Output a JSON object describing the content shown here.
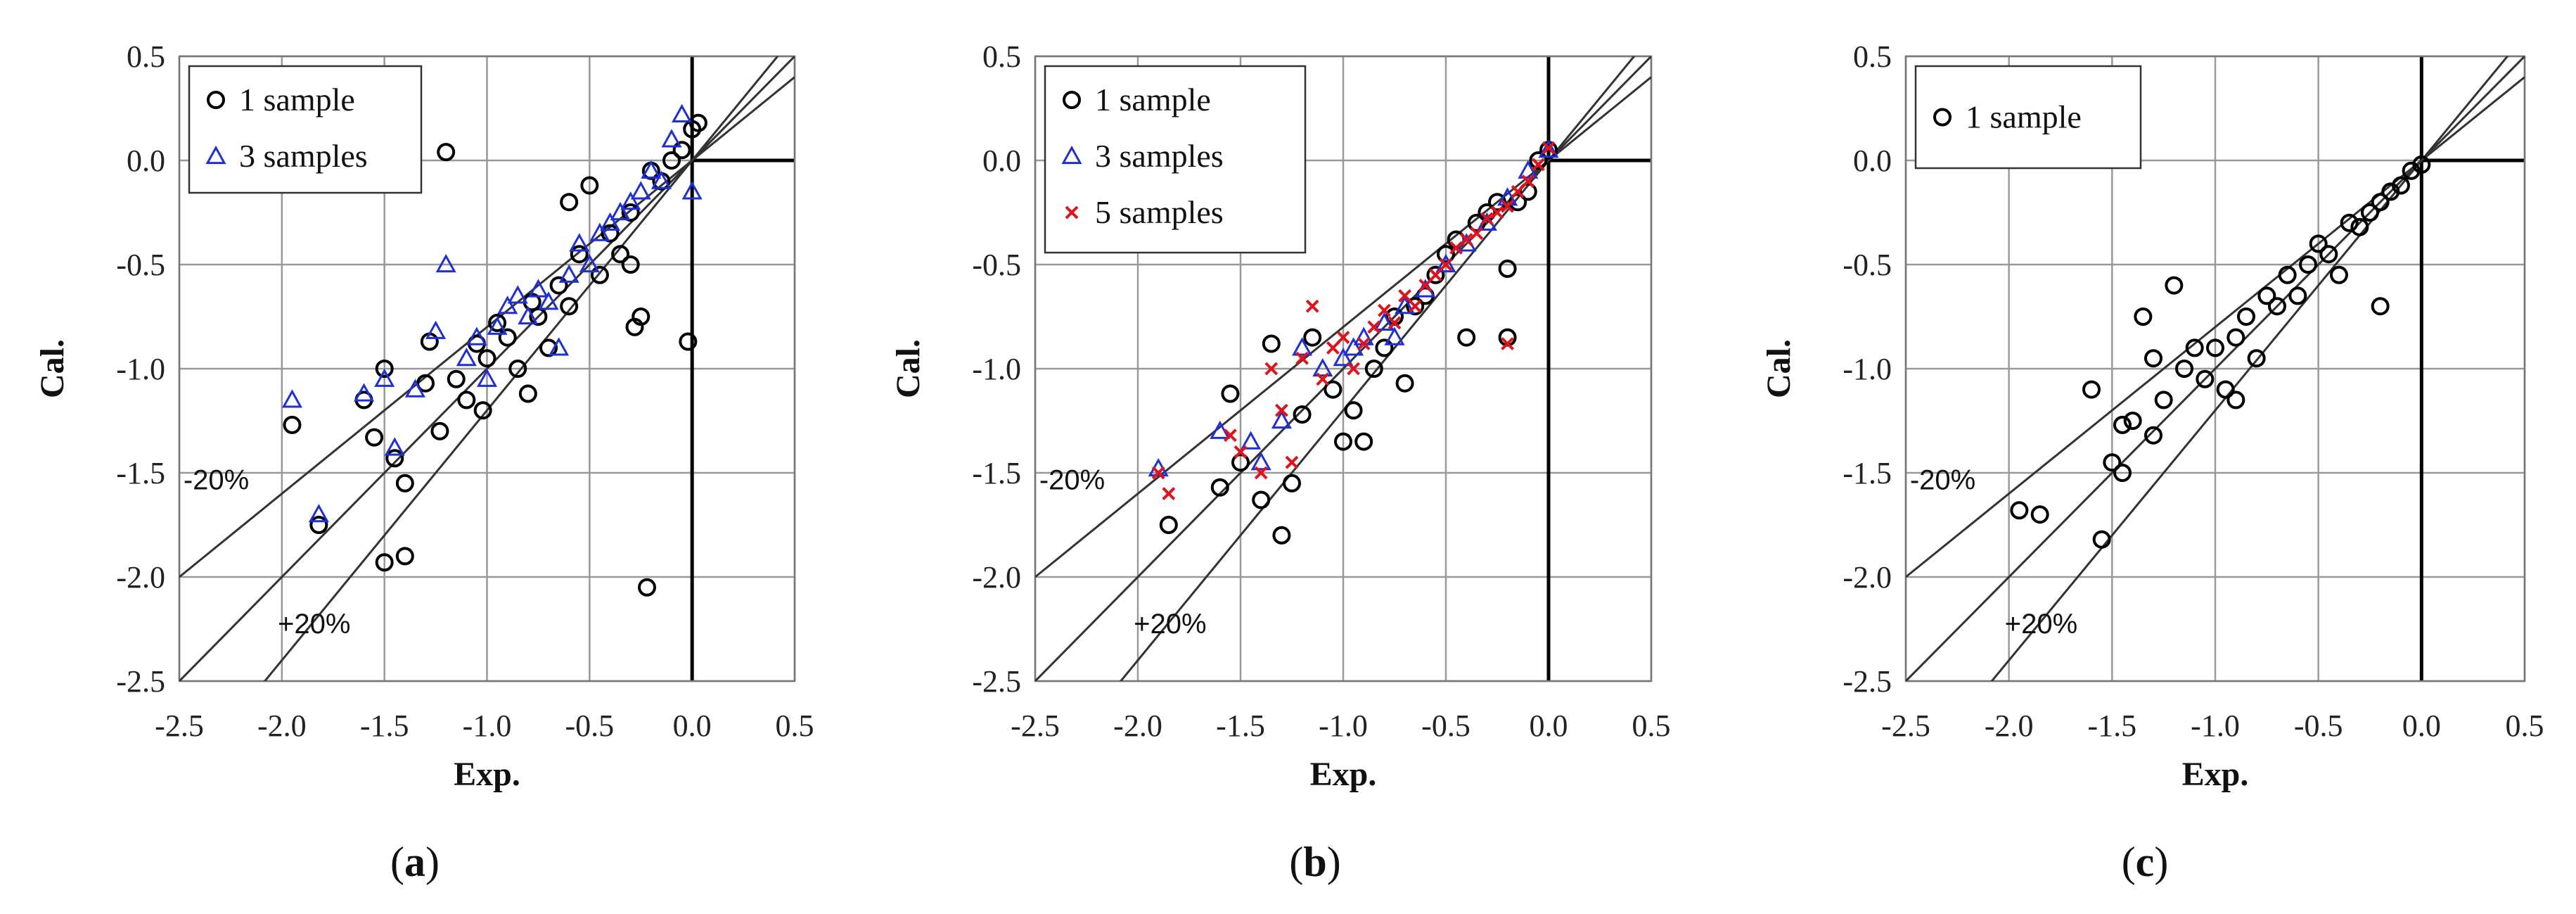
{
  "chart_data": [
    {
      "type": "scatter",
      "panel_label": {
        "open": "(",
        "letter": "a",
        "close": ")"
      },
      "xlabel": "Exp.",
      "ylabel": "Cal.",
      "xlim": [
        -2.5,
        0.5
      ],
      "ylim": [
        -2.5,
        0.5
      ],
      "xticks": [
        "-2.5",
        "-2.0",
        "-1.5",
        "-1.0",
        "-0.5",
        "0.0",
        "0.5"
      ],
      "yticks": [
        "0.5",
        "0.0",
        "-0.5",
        "-1.0",
        "-1.5",
        "-2.0",
        "-2.5"
      ],
      "grid": true,
      "legend_position": "top-left",
      "reference_lines": [
        {
          "slope": 1.0,
          "label": ""
        },
        {
          "slope": 0.8,
          "label": "-20%"
        },
        {
          "slope": 1.2,
          "label": "+20%"
        }
      ],
      "series": [
        {
          "name": "1 sample",
          "marker": "circle",
          "color": "#000000",
          "points": [
            [
              -1.95,
              -1.27
            ],
            [
              -1.82,
              -1.75
            ],
            [
              -1.55,
              -1.33
            ],
            [
              -1.5,
              -1.0
            ],
            [
              -1.5,
              -1.93
            ],
            [
              -1.45,
              -1.43
            ],
            [
              -1.4,
              -1.9
            ],
            [
              -1.3,
              -1.07
            ],
            [
              -1.28,
              -0.87
            ],
            [
              -1.23,
              -1.3
            ],
            [
              -1.2,
              0.04
            ],
            [
              -1.15,
              -1.05
            ],
            [
              -1.1,
              -1.15
            ],
            [
              -1.05,
              -0.88
            ],
            [
              -1.02,
              -1.2
            ],
            [
              -1.0,
              -0.95
            ],
            [
              -0.95,
              -0.78
            ],
            [
              -0.9,
              -0.85
            ],
            [
              -0.85,
              -1.0
            ],
            [
              -0.8,
              -1.12
            ],
            [
              -0.78,
              -0.68
            ],
            [
              -0.75,
              -0.75
            ],
            [
              -0.7,
              -0.9
            ],
            [
              -0.65,
              -0.6
            ],
            [
              -0.6,
              -0.7
            ],
            [
              -0.55,
              -0.45
            ],
            [
              -0.5,
              -0.12
            ],
            [
              -0.45,
              -0.55
            ],
            [
              -0.4,
              -0.35
            ],
            [
              -0.35,
              -0.45
            ],
            [
              -0.3,
              -0.25
            ],
            [
              -0.28,
              -0.8
            ],
            [
              -0.25,
              -0.75
            ],
            [
              -0.22,
              -2.05
            ],
            [
              -0.2,
              -0.05
            ],
            [
              -0.15,
              -0.1
            ],
            [
              -0.1,
              0.0
            ],
            [
              -0.05,
              0.05
            ],
            [
              -0.02,
              -0.87
            ],
            [
              0.0,
              0.15
            ],
            [
              0.03,
              0.18
            ],
            [
              -0.3,
              -0.5
            ],
            [
              -0.6,
              -0.2
            ],
            [
              -1.4,
              -1.55
            ],
            [
              -1.6,
              -1.15
            ]
          ]
        },
        {
          "name": "3 samples",
          "marker": "triangle",
          "color": "#1f2fd6",
          "points": [
            [
              -1.95,
              -1.15
            ],
            [
              -1.82,
              -1.7
            ],
            [
              -1.6,
              -1.12
            ],
            [
              -1.5,
              -1.05
            ],
            [
              -1.45,
              -1.38
            ],
            [
              -1.35,
              -1.1
            ],
            [
              -1.25,
              -0.82
            ],
            [
              -1.2,
              -0.5
            ],
            [
              -1.1,
              -0.95
            ],
            [
              -1.05,
              -0.85
            ],
            [
              -0.95,
              -0.8
            ],
            [
              -0.9,
              -0.7
            ],
            [
              -0.85,
              -0.65
            ],
            [
              -0.8,
              -0.75
            ],
            [
              -0.75,
              -0.62
            ],
            [
              -0.7,
              -0.68
            ],
            [
              -0.6,
              -0.55
            ],
            [
              -0.55,
              -0.4
            ],
            [
              -0.5,
              -0.5
            ],
            [
              -0.45,
              -0.35
            ],
            [
              -0.4,
              -0.3
            ],
            [
              -0.35,
              -0.25
            ],
            [
              -0.3,
              -0.2
            ],
            [
              -0.25,
              -0.15
            ],
            [
              -0.2,
              -0.05
            ],
            [
              -0.15,
              -0.1
            ],
            [
              -0.1,
              0.1
            ],
            [
              -0.05,
              0.22
            ],
            [
              0.0,
              -0.15
            ],
            [
              -1.0,
              -1.05
            ],
            [
              -0.65,
              -0.9
            ]
          ]
        }
      ]
    },
    {
      "type": "scatter",
      "panel_label": {
        "open": "(",
        "letter": "b",
        "close": ")"
      },
      "xlabel": "Exp.",
      "ylabel": "Cal.",
      "xlim": [
        -2.5,
        0.5
      ],
      "ylim": [
        -2.5,
        0.5
      ],
      "xticks": [
        "-2.5",
        "-2.0",
        "-1.5",
        "-1.0",
        "-0.5",
        "0.0",
        "0.5"
      ],
      "yticks": [
        "0.5",
        "0.0",
        "-0.5",
        "-1.0",
        "-1.5",
        "-2.0",
        "-2.5"
      ],
      "grid": true,
      "legend_position": "top-left",
      "reference_lines": [
        {
          "slope": 1.0,
          "label": ""
        },
        {
          "slope": 0.8,
          "label": "-20%"
        },
        {
          "slope": 1.2,
          "label": "+20%"
        }
      ],
      "series": [
        {
          "name": "1 sample",
          "marker": "circle",
          "color": "#000000",
          "points": [
            [
              -1.85,
              -1.75
            ],
            [
              -1.6,
              -1.57
            ],
            [
              -1.55,
              -1.12
            ],
            [
              -1.5,
              -1.45
            ],
            [
              -1.4,
              -1.63
            ],
            [
              -1.35,
              -0.88
            ],
            [
              -1.3,
              -1.8
            ],
            [
              -1.25,
              -1.55
            ],
            [
              -1.2,
              -1.22
            ],
            [
              -1.15,
              -0.85
            ],
            [
              -1.05,
              -1.1
            ],
            [
              -1.0,
              -1.35
            ],
            [
              -0.95,
              -1.2
            ],
            [
              -0.9,
              -1.35
            ],
            [
              -0.85,
              -1.0
            ],
            [
              -0.8,
              -0.9
            ],
            [
              -0.75,
              -0.75
            ],
            [
              -0.7,
              -1.07
            ],
            [
              -0.65,
              -0.7
            ],
            [
              -0.6,
              -0.65
            ],
            [
              -0.55,
              -0.55
            ],
            [
              -0.5,
              -0.45
            ],
            [
              -0.45,
              -0.38
            ],
            [
              -0.4,
              -0.85
            ],
            [
              -0.35,
              -0.3
            ],
            [
              -0.3,
              -0.25
            ],
            [
              -0.25,
              -0.2
            ],
            [
              -0.2,
              -0.85
            ],
            [
              -0.2,
              -0.52
            ],
            [
              -0.15,
              -0.2
            ],
            [
              -0.1,
              -0.15
            ],
            [
              -0.05,
              0.0
            ],
            [
              0.0,
              0.05
            ]
          ]
        },
        {
          "name": "3 samples",
          "marker": "triangle",
          "color": "#1f2fd6",
          "points": [
            [
              -1.9,
              -1.48
            ],
            [
              -1.6,
              -1.3
            ],
            [
              -1.45,
              -1.35
            ],
            [
              -1.3,
              -1.25
            ],
            [
              -1.2,
              -0.9
            ],
            [
              -1.1,
              -1.0
            ],
            [
              -1.0,
              -0.95
            ],
            [
              -0.95,
              -0.9
            ],
            [
              -0.9,
              -0.85
            ],
            [
              -0.8,
              -0.78
            ],
            [
              -0.7,
              -0.7
            ],
            [
              -0.6,
              -0.62
            ],
            [
              -0.5,
              -0.5
            ],
            [
              -0.4,
              -0.4
            ],
            [
              -0.3,
              -0.3
            ],
            [
              -0.2,
              -0.18
            ],
            [
              -0.1,
              -0.05
            ],
            [
              0.0,
              0.05
            ],
            [
              -1.4,
              -1.45
            ],
            [
              -0.75,
              -0.85
            ]
          ]
        },
        {
          "name": "5 samples",
          "marker": "cross",
          "color": "#e0121c",
          "points": [
            [
              -1.9,
              -1.5
            ],
            [
              -1.85,
              -1.6
            ],
            [
              -1.55,
              -1.32
            ],
            [
              -1.5,
              -1.4
            ],
            [
              -1.4,
              -1.5
            ],
            [
              -1.35,
              -1.0
            ],
            [
              -1.3,
              -1.2
            ],
            [
              -1.2,
              -0.95
            ],
            [
              -1.15,
              -0.7
            ],
            [
              -1.1,
              -1.05
            ],
            [
              -1.05,
              -0.9
            ],
            [
              -1.0,
              -0.85
            ],
            [
              -0.95,
              -1.0
            ],
            [
              -0.9,
              -0.88
            ],
            [
              -0.85,
              -0.8
            ],
            [
              -0.8,
              -0.72
            ],
            [
              -0.75,
              -0.78
            ],
            [
              -0.7,
              -0.65
            ],
            [
              -0.65,
              -0.7
            ],
            [
              -0.6,
              -0.6
            ],
            [
              -0.55,
              -0.55
            ],
            [
              -0.5,
              -0.5
            ],
            [
              -0.45,
              -0.42
            ],
            [
              -0.4,
              -0.38
            ],
            [
              -0.35,
              -0.35
            ],
            [
              -0.3,
              -0.28
            ],
            [
              -0.25,
              -0.25
            ],
            [
              -0.2,
              -0.22
            ],
            [
              -0.15,
              -0.15
            ],
            [
              -0.1,
              -0.1
            ],
            [
              -0.05,
              -0.02
            ],
            [
              0.0,
              0.06
            ],
            [
              -0.2,
              -0.88
            ],
            [
              -1.25,
              -1.45
            ]
          ]
        }
      ]
    },
    {
      "type": "scatter",
      "panel_label": {
        "open": "(",
        "letter": "c",
        "close": ")"
      },
      "xlabel": "Exp.",
      "ylabel": "Cal.",
      "xlim": [
        -2.5,
        0.5
      ],
      "ylim": [
        -2.5,
        0.5
      ],
      "xticks": [
        "-2.5",
        "-2.0",
        "-1.5",
        "-1.0",
        "-0.5",
        "0.0",
        "0.5"
      ],
      "yticks": [
        "0.5",
        "0.0",
        "-0.5",
        "-1.0",
        "-1.5",
        "-2.0",
        "-2.5"
      ],
      "grid": true,
      "legend_position": "top-left",
      "reference_lines": [
        {
          "slope": 1.0,
          "label": ""
        },
        {
          "slope": 0.8,
          "label": "-20%"
        },
        {
          "slope": 1.2,
          "label": "+20%"
        }
      ],
      "series": [
        {
          "name": "1 sample",
          "marker": "circle",
          "color": "#000000",
          "points": [
            [
              -1.95,
              -1.68
            ],
            [
              -1.85,
              -1.7
            ],
            [
              -1.6,
              -1.1
            ],
            [
              -1.55,
              -1.82
            ],
            [
              -1.5,
              -1.45
            ],
            [
              -1.45,
              -1.5
            ],
            [
              -1.4,
              -1.25
            ],
            [
              -1.35,
              -0.75
            ],
            [
              -1.3,
              -0.95
            ],
            [
              -1.25,
              -1.15
            ],
            [
              -1.2,
              -0.6
            ],
            [
              -1.15,
              -1.0
            ],
            [
              -1.1,
              -0.9
            ],
            [
              -1.05,
              -1.05
            ],
            [
              -1.0,
              -0.9
            ],
            [
              -0.95,
              -1.1
            ],
            [
              -0.9,
              -0.85
            ],
            [
              -0.85,
              -0.75
            ],
            [
              -0.8,
              -0.95
            ],
            [
              -0.75,
              -0.65
            ],
            [
              -0.7,
              -0.7
            ],
            [
              -0.65,
              -0.55
            ],
            [
              -0.6,
              -0.65
            ],
            [
              -0.55,
              -0.5
            ],
            [
              -0.5,
              -0.4
            ],
            [
              -0.45,
              -0.45
            ],
            [
              -0.4,
              -0.55
            ],
            [
              -0.35,
              -0.3
            ],
            [
              -0.3,
              -0.32
            ],
            [
              -0.25,
              -0.25
            ],
            [
              -0.2,
              -0.7
            ],
            [
              -0.2,
              -0.2
            ],
            [
              -0.15,
              -0.15
            ],
            [
              -0.1,
              -0.12
            ],
            [
              -0.05,
              -0.05
            ],
            [
              0.0,
              -0.02
            ],
            [
              -1.45,
              -1.27
            ],
            [
              -1.3,
              -1.32
            ],
            [
              -0.9,
              -1.15
            ]
          ]
        }
      ]
    }
  ]
}
